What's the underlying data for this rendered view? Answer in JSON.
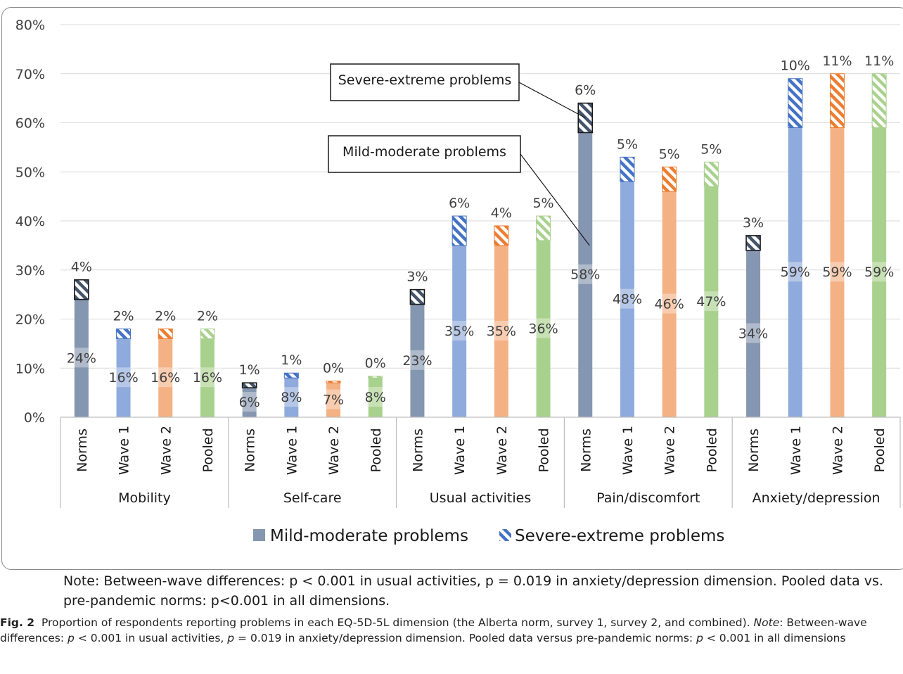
{
  "chart_data": {
    "type": "bar",
    "stacked": true,
    "groups": [
      "Mobility",
      "Self-care",
      "Usual activities",
      "Pain/discomfort",
      "Anxiety/depression"
    ],
    "categories": [
      "Norms",
      "Wave 1",
      "Wave 2",
      "Pooled"
    ],
    "series": [
      {
        "name": "Mild-moderate problems",
        "values": [
          [
            24,
            16,
            16,
            16
          ],
          [
            6,
            8,
            7,
            8
          ],
          [
            23,
            35,
            35,
            36
          ],
          [
            58,
            48,
            46,
            47
          ],
          [
            34,
            59,
            59,
            59
          ]
        ]
      },
      {
        "name": "Severe-extreme problems",
        "values": [
          [
            4,
            2,
            2,
            2
          ],
          [
            1,
            1,
            0,
            0
          ],
          [
            3,
            6,
            4,
            5
          ],
          [
            6,
            5,
            5,
            5
          ],
          [
            3,
            10,
            11,
            11
          ]
        ]
      }
    ],
    "ylim": [
      0,
      80
    ],
    "yticks": [
      "0%",
      "10%",
      "20%",
      "30%",
      "40%",
      "50%",
      "60%",
      "70%",
      "80%"
    ],
    "grid": true,
    "legend": "bottom",
    "annotations": [
      "Severe-extreme problems",
      "Mild-moderate problems"
    ],
    "colors": {
      "Norms": "#8496b0",
      "Wave 1": "#8faadc",
      "Wave 2": "#f4b183",
      "Pooled": "#a9d18e"
    },
    "stripe_colors": {
      "Norms": "#44546a",
      "Wave 1": "#4472c4",
      "Wave 2": "#ed7d31",
      "Pooled": "#a9d18e"
    }
  },
  "note": "Note: Between-wave differences: p < 0.001 in usual activities, p = 0.019 in anxiety/depression dimension. Pooled data vs. pre-pandemic norms: p<0.001 in all dimensions.",
  "caption": {
    "label": "Fig. 2",
    "text_1": "Proportion of respondents reporting problems in each EQ-5D-5L dimension (the Alberta norm, survey 1, survey 2, and combined).",
    "note_word": "Note",
    "text_2": ": Between-wave differences: ",
    "p1": "p",
    "text_3": " < 0.001 in usual activities, ",
    "p2": "p",
    "text_4": " = 0.019 in anxiety/depression dimension. Pooled data versus pre-pandemic norms: ",
    "p3": "p",
    "text_5": " < 0.001 in all dimensions"
  }
}
